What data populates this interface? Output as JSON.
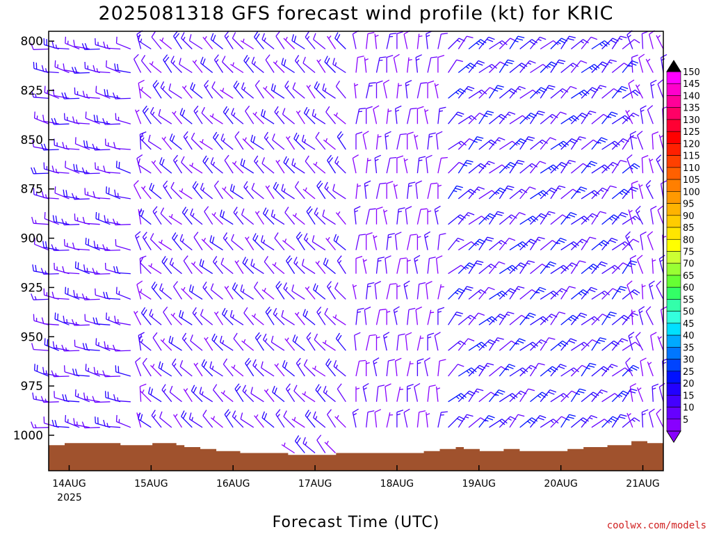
{
  "chart_data": {
    "type": "wind-barb-profile",
    "title": "2025081318 GFS forecast wind profile (kt) for KRIC",
    "xlabel": "Forecast Time (UTC)",
    "y_ticks": [
      "800",
      "825",
      "850",
      "875",
      "900",
      "925",
      "950",
      "975",
      "1000"
    ],
    "y_range_hpa": [
      795,
      1018
    ],
    "x_ticks": [
      "14AUG",
      "15AUG",
      "16AUG",
      "17AUG",
      "18AUG",
      "19AUG",
      "20AUG",
      "21AUG"
    ],
    "x_tick_year": "2025",
    "x_range_days": [
      "2025-08-13T18",
      "2025-08-21T06"
    ],
    "credit": "coolwx.com/models",
    "levels_hpa": [
      804,
      816,
      829,
      842,
      855,
      867,
      880,
      893,
      906,
      918,
      931,
      944,
      957,
      970,
      983,
      996,
      1009
    ],
    "barb_hours_step": 3,
    "colorbar": {
      "labels": [
        "150",
        "145",
        "140",
        "135",
        "130",
        "125",
        "120",
        "115",
        "110",
        "105",
        "100",
        "95",
        "90",
        "85",
        "80",
        "75",
        "70",
        "65",
        "60",
        "55",
        "50",
        "45",
        "40",
        "35",
        "30",
        "25",
        "20",
        "15",
        "10",
        "5"
      ],
      "colors": [
        "#ff00ff",
        "#ff00cc",
        "#ff0099",
        "#ff0066",
        "#ff0033",
        "#ff0000",
        "#ff2000",
        "#ff4000",
        "#ff6000",
        "#ff7f00",
        "#ff9900",
        "#ffb300",
        "#ffcc00",
        "#ffe600",
        "#ffff00",
        "#ccff33",
        "#99ff33",
        "#66ff33",
        "#33ff66",
        "#33ffaa",
        "#33ffdd",
        "#00e0ff",
        "#00aaff",
        "#0077ff",
        "#0044ff",
        "#0011ff",
        "#2200ff",
        "#4400ff",
        "#6600ff",
        "#8800ff"
      ]
    },
    "terrain_pressure_hpa": [
      1005,
      1005,
      1004,
      1004,
      1004,
      1004,
      1004,
      1004,
      1004,
      1005,
      1005,
      1005,
      1005,
      1004,
      1004,
      1004,
      1005,
      1006,
      1006,
      1007,
      1007,
      1008,
      1008,
      1008,
      1009,
      1009,
      1009,
      1009,
      1009,
      1009,
      1010,
      1010,
      1010,
      1010,
      1010,
      1010,
      1009,
      1009,
      1009,
      1009,
      1009,
      1009,
      1009,
      1009,
      1009,
      1009,
      1009,
      1008,
      1008,
      1007,
      1007,
      1006,
      1007,
      1007,
      1008,
      1008,
      1008,
      1007,
      1007,
      1008,
      1008,
      1008,
      1008,
      1008,
      1008,
      1007,
      1007,
      1006,
      1006,
      1006,
      1005,
      1005,
      1005,
      1003,
      1003,
      1004,
      1004
    ],
    "wind_regimes": [
      {
        "from": "2025-08-13T18",
        "to": "2025-08-14T21",
        "direction_deg": 280,
        "speed_kt": [
          10,
          20
        ]
      },
      {
        "from": "2025-08-15T00",
        "to": "2025-08-17T12",
        "direction_deg": 315,
        "speed_kt": [
          5,
          20
        ]
      },
      {
        "from": "2025-08-17T12",
        "to": "2025-08-18T15",
        "direction_deg": 360,
        "speed_kt": [
          5,
          15
        ]
      },
      {
        "from": "2025-08-18T15",
        "to": "2025-08-20T21",
        "direction_deg": 45,
        "speed_kt": [
          10,
          25
        ]
      },
      {
        "from": "2025-08-20T21",
        "to": "2025-08-21T06",
        "direction_deg": 345,
        "speed_kt": [
          5,
          15
        ]
      }
    ]
  }
}
